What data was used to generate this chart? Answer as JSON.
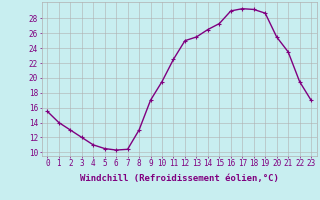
{
  "x": [
    0,
    1,
    2,
    3,
    4,
    5,
    6,
    7,
    8,
    9,
    10,
    11,
    12,
    13,
    14,
    15,
    16,
    17,
    18,
    19,
    20,
    21,
    22,
    23
  ],
  "y": [
    15.5,
    14.0,
    13.0,
    12.0,
    11.0,
    10.5,
    10.3,
    10.4,
    13.0,
    17.0,
    19.5,
    22.5,
    25.0,
    25.5,
    26.5,
    27.3,
    29.0,
    29.3,
    29.2,
    28.7,
    25.5,
    23.5,
    19.5,
    17.0
  ],
  "line_color": "#800080",
  "marker": "+",
  "marker_size": 3,
  "bg_color": "#c8eef0",
  "grid_color": "#b0b0b0",
  "xlabel": "Windchill (Refroidissement éolien,°C)",
  "xlabel_fontsize": 6.5,
  "xtick_labels": [
    "0",
    "1",
    "2",
    "3",
    "4",
    "5",
    "6",
    "7",
    "8",
    "9",
    "10",
    "11",
    "12",
    "13",
    "14",
    "15",
    "16",
    "17",
    "18",
    "19",
    "20",
    "21",
    "22",
    "23"
  ],
  "ytick_values": [
    10,
    12,
    14,
    16,
    18,
    20,
    22,
    24,
    26,
    28
  ],
  "ylim": [
    9.5,
    30.2
  ],
  "xlim": [
    -0.5,
    23.5
  ],
  "tick_fontsize": 5.5,
  "line_width": 1.0
}
